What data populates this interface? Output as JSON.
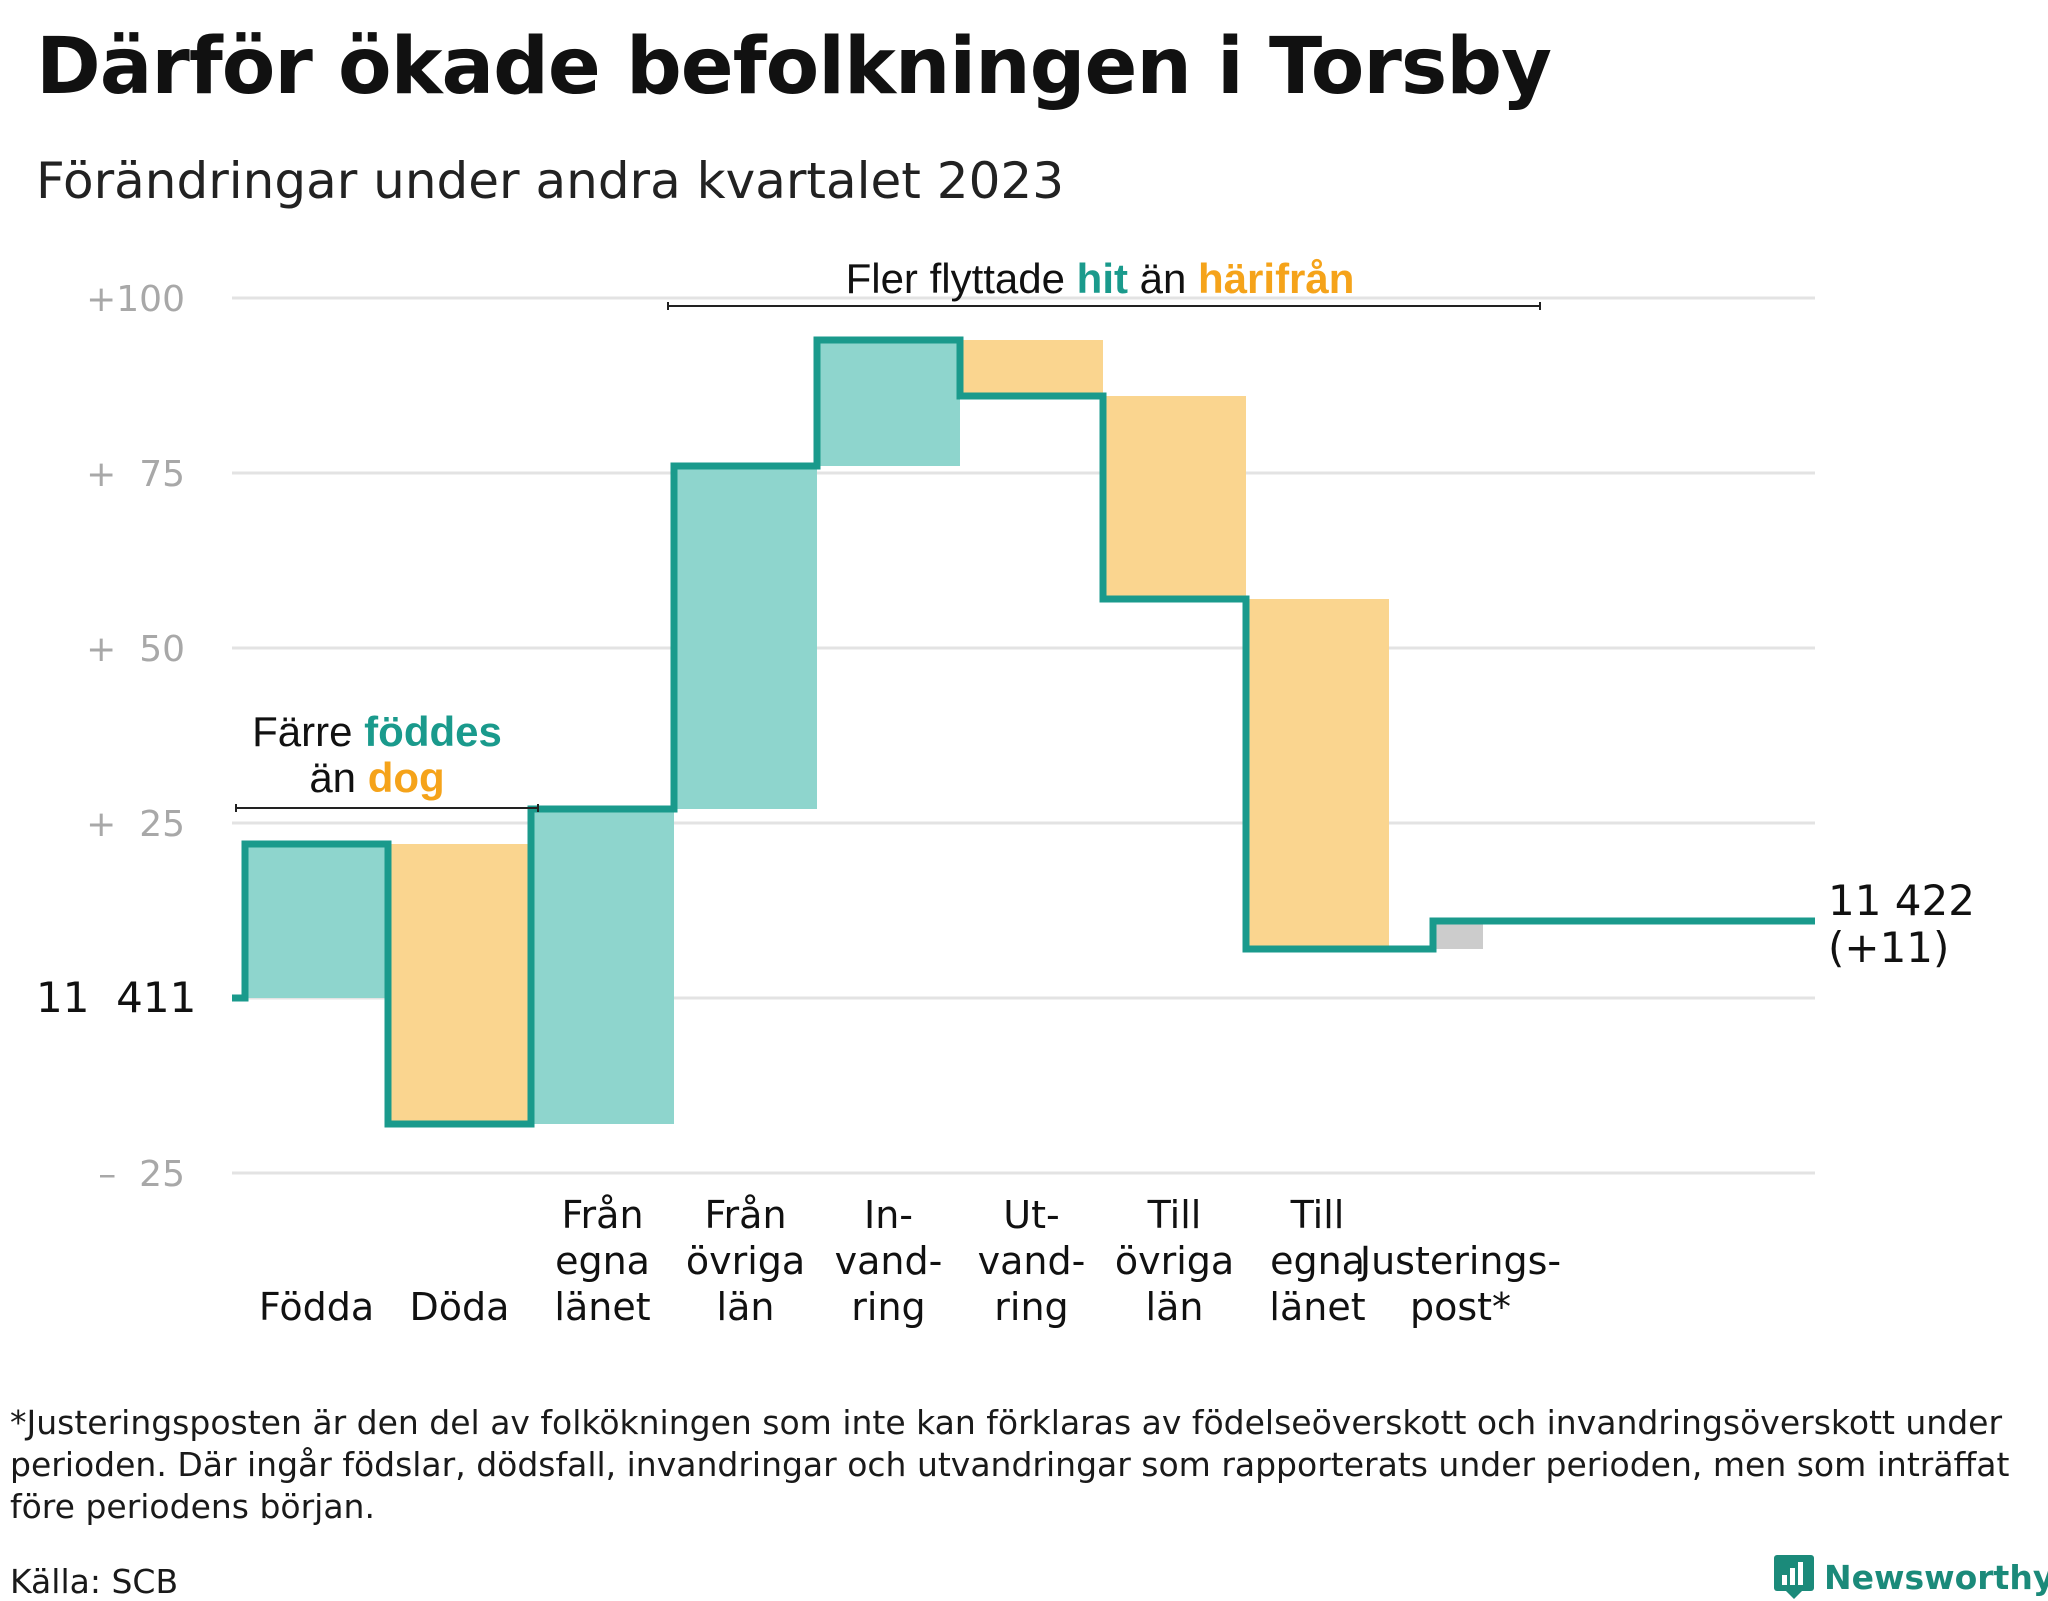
{
  "title": "Därför ökade befolkningen i Torsby",
  "subtitle": "Förändringar under andra kvartalet 2023",
  "colors": {
    "inflow_fill": "#8ed5cd",
    "outflow_fill": "#fad58f",
    "adjustment_fill": "#cccccc",
    "step_line": "#1a9a8c",
    "accent_teal": "#1a9a8c",
    "accent_orange": "#f5a31a",
    "grid": "#e3e3e3",
    "tick_text": "#a8a8a8"
  },
  "annotations": {
    "births": {
      "pre": "Färre ",
      "teal": "föddes",
      "line2_pre": "än ",
      "orange": "dog"
    },
    "migration": {
      "pre": "Fler flyttade ",
      "teal": "hit",
      "mid": " än ",
      "orange": "härifrån"
    }
  },
  "chart_data": {
    "type": "waterfall",
    "ylim": [
      -25,
      100
    ],
    "yticks": [
      {
        "value": 100,
        "label": "+100"
      },
      {
        "value": 75,
        "label": "+  75"
      },
      {
        "value": 50,
        "label": "+  50"
      },
      {
        "value": 25,
        "label": "+  25"
      },
      {
        "value": -25,
        "label": "–  25"
      }
    ],
    "start": {
      "value": 0,
      "label": "11  411"
    },
    "end": {
      "value": 11,
      "label_line1": "11 422",
      "label_line2": "(+11)"
    },
    "steps": [
      {
        "label": "Födda",
        "label_lines": [
          "Födda"
        ],
        "change": 22,
        "direction": "in"
      },
      {
        "label": "Döda",
        "label_lines": [
          "Döda"
        ],
        "change": -40,
        "direction": "out"
      },
      {
        "label": "Från egna länet",
        "label_lines": [
          "Från",
          "egna",
          "länet"
        ],
        "change": 45,
        "direction": "in"
      },
      {
        "label": "Från övriga län",
        "label_lines": [
          "Från",
          "övriga",
          "län"
        ],
        "change": 49,
        "direction": "in"
      },
      {
        "label": "In-vand-ring",
        "label_lines": [
          "In-",
          "vand-",
          "ring"
        ],
        "change": 18,
        "direction": "in"
      },
      {
        "label": "Ut-vand-ring",
        "label_lines": [
          "Ut-",
          "vand-",
          "ring"
        ],
        "change": -8,
        "direction": "out"
      },
      {
        "label": "Till övriga län",
        "label_lines": [
          "Till",
          "övriga",
          "län"
        ],
        "change": -29,
        "direction": "out"
      },
      {
        "label": "Till egna länet",
        "label_lines": [
          "Till",
          "egna",
          "länet"
        ],
        "change": -50,
        "direction": "out"
      },
      {
        "label": "Justeringspost*",
        "label_lines": [
          "Justerings-",
          "post*"
        ],
        "change": 4,
        "direction": "adjustment"
      }
    ]
  },
  "footnote": "*Justeringsposten är den del av folkökningen som inte kan förklaras av födelseöverskott och invandringsöverskott under perioden. Där ingår födslar, dödsfall, invandringar och utvandringar som rapporterats under perioden, men som inträffat före periodens början.",
  "source": "Källa: SCB",
  "brand": "Newsworthy",
  "brand_icon": "newsworthy-logo-icon"
}
